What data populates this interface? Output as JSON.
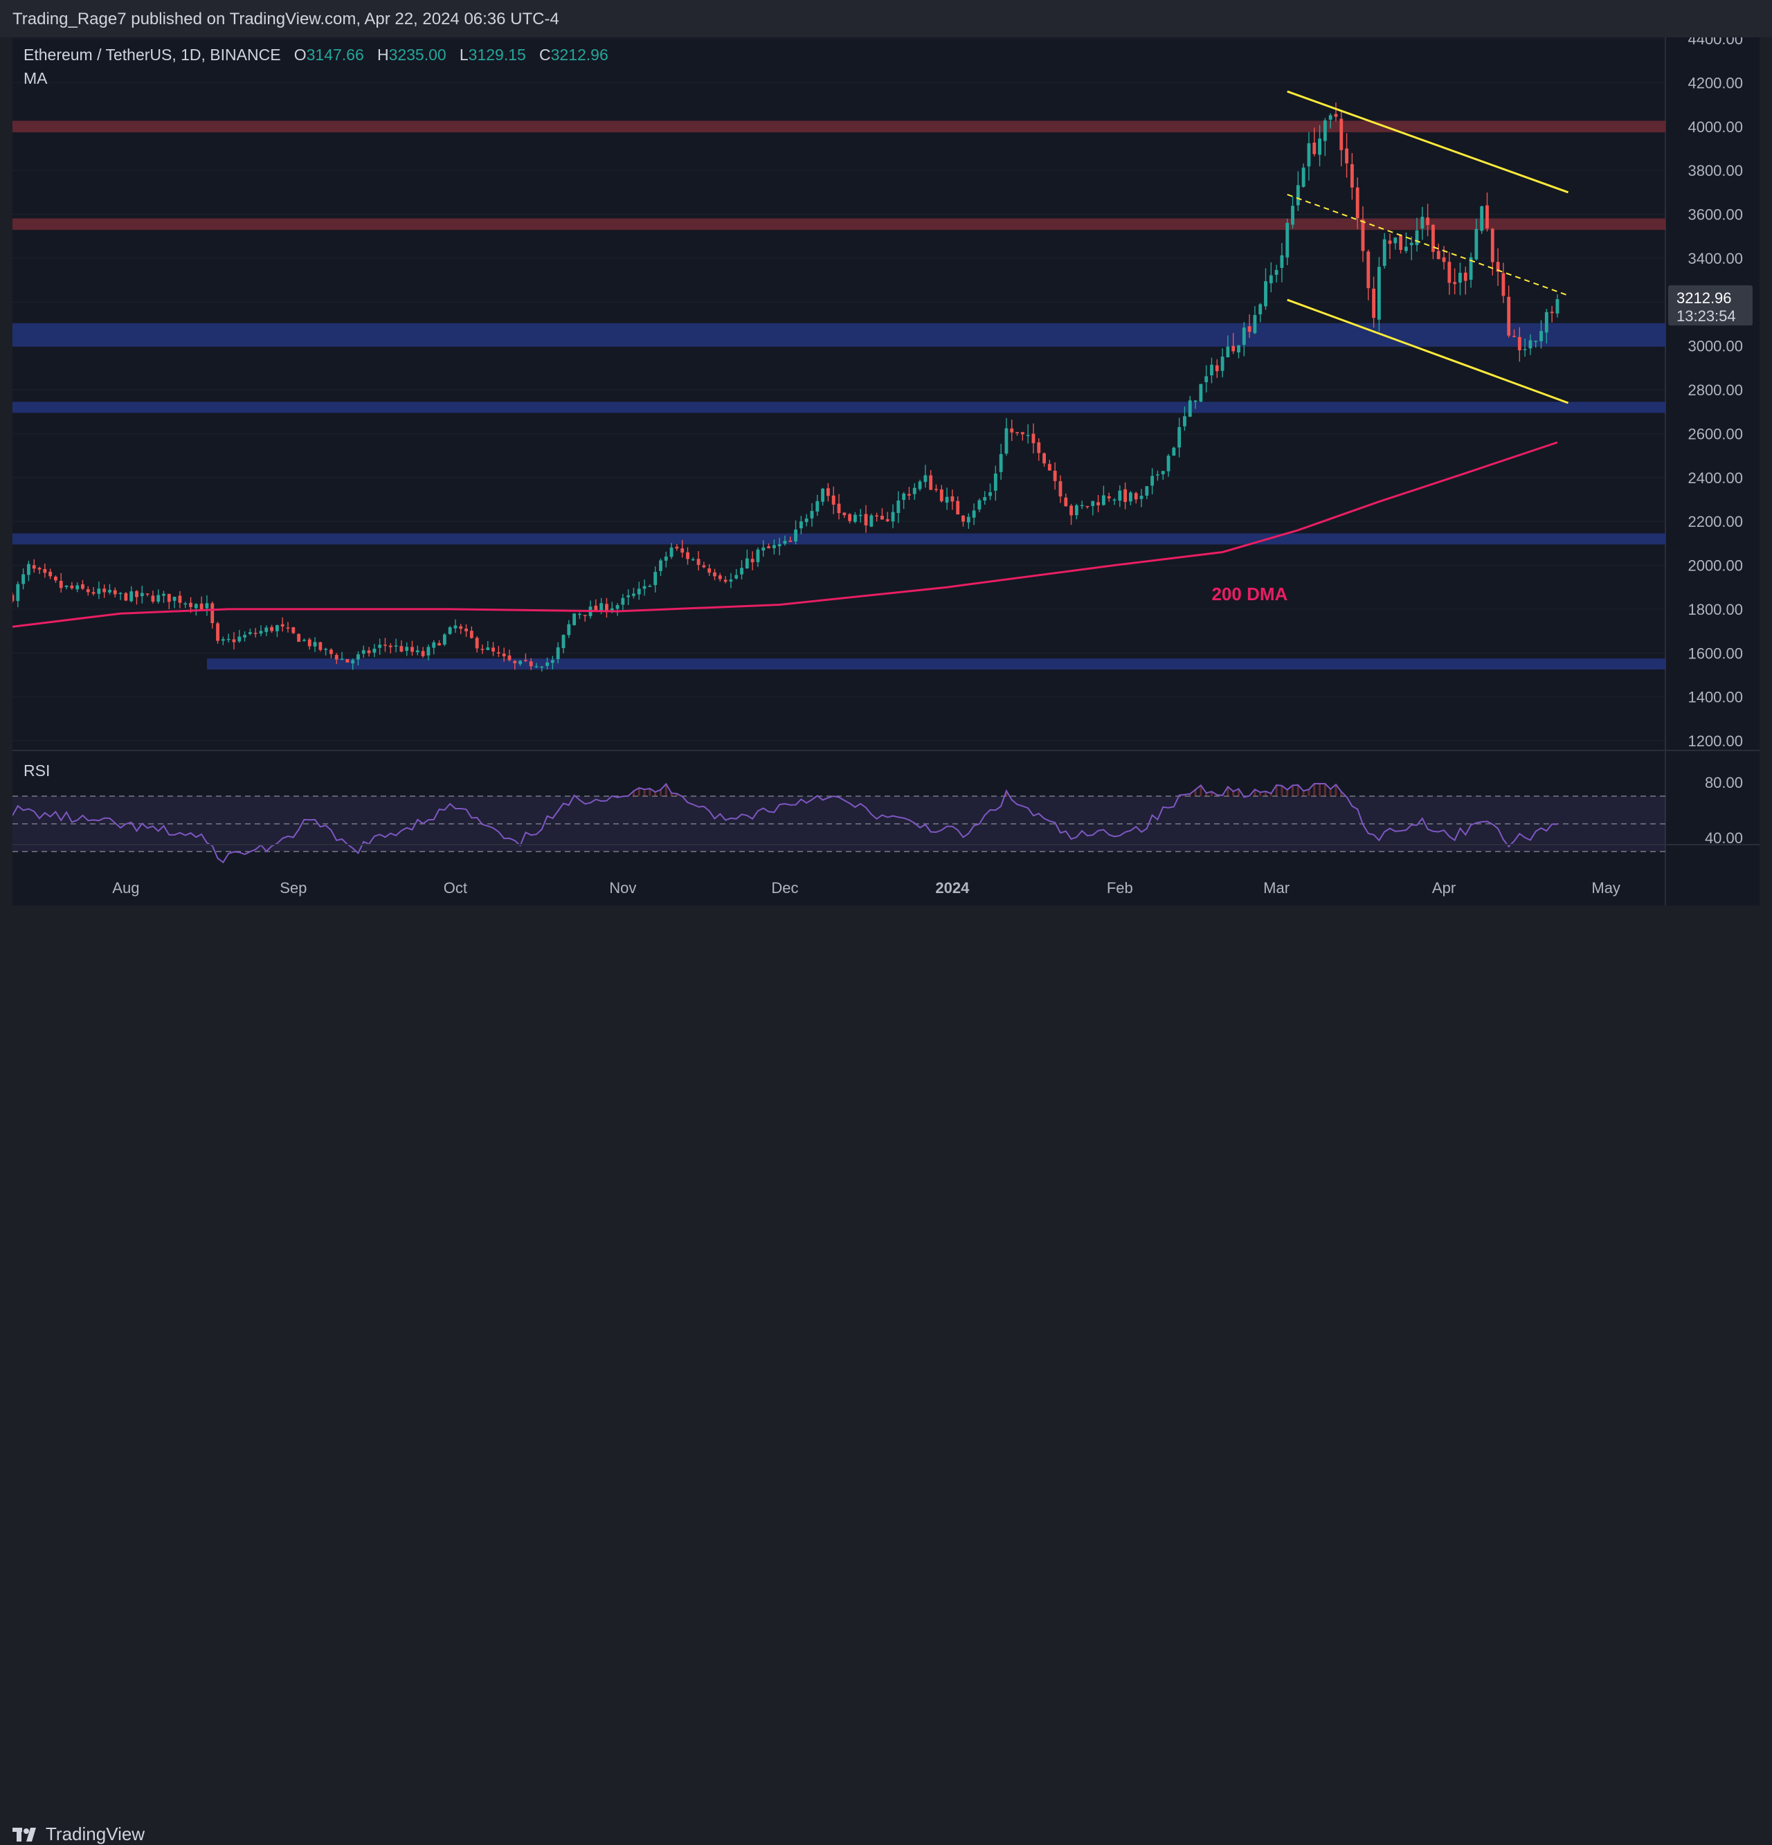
{
  "header": {
    "publisher": "Trading_Rage7 published on TradingView.com, Apr 22, 2024 06:36 UTC-4"
  },
  "legend": {
    "symbol": "Ethereum / TetherUS, 1D, BINANCE",
    "open_label": "O",
    "open": "3147.66",
    "high_label": "H",
    "high": "3235.00",
    "low_label": "L",
    "low": "3129.15",
    "close_label": "C",
    "close": "3212.96",
    "indicator": "MA"
  },
  "price_tag": {
    "price": "3212.96",
    "countdown": "13:23:54"
  },
  "annotations": {
    "ma_label": "200 DMA"
  },
  "rsi": {
    "label": "RSI",
    "ticks": [
      "80.00",
      "40.00"
    ],
    "upper_band": 70,
    "middle": 50,
    "lower_band": 30
  },
  "footer": {
    "brand": "TradingView"
  },
  "colors": {
    "up": "#26a69a",
    "down": "#ef5350",
    "ma": "#e91e63",
    "channel": "#ffeb3b",
    "rsi": "#7e57c2"
  },
  "chart_data": {
    "type": "candlestick",
    "title": "Ethereum / TetherUS, 1D, BINANCE",
    "ylim": [
      1200,
      4400
    ],
    "y_ticks": [
      "4400.00",
      "4200.00",
      "4000.00",
      "3800.00",
      "3600.00",
      "3400.00",
      "3200.00",
      "3000.00",
      "2800.00",
      "2600.00",
      "2400.00",
      "2200.00",
      "2000.00",
      "1800.00",
      "1600.00",
      "1400.00",
      "1200.00"
    ],
    "x_ticks": [
      "Aug",
      "Sep",
      "Oct",
      "Nov",
      "Dec",
      "2024",
      "Feb",
      "Mar",
      "Apr",
      "May"
    ],
    "x_range": [
      "2023-07-11",
      "2024-05-12"
    ],
    "last_bar": {
      "date": "2024-04-22",
      "open": 3147.66,
      "high": 3235.0,
      "low": 3129.15,
      "close": 3212.96
    },
    "price_path": [
      [
        "2023-07-11",
        1860
      ],
      [
        "2023-07-14",
        1990
      ],
      [
        "2023-07-20",
        1900
      ],
      [
        "2023-07-31",
        1860
      ],
      [
        "2023-08-10",
        1850
      ],
      [
        "2023-08-16",
        1810
      ],
      [
        "2023-08-18",
        1640
      ],
      [
        "2023-08-29",
        1720
      ],
      [
        "2023-09-05",
        1630
      ],
      [
        "2023-09-11",
        1560
      ],
      [
        "2023-09-18",
        1640
      ],
      [
        "2023-09-25",
        1590
      ],
      [
        "2023-10-01",
        1720
      ],
      [
        "2023-10-05",
        1640
      ],
      [
        "2023-10-12",
        1545
      ],
      [
        "2023-10-19",
        1560
      ],
      [
        "2023-10-23",
        1780
      ],
      [
        "2023-10-31",
        1820
      ],
      [
        "2023-11-05",
        1890
      ],
      [
        "2023-11-10",
        2080
      ],
      [
        "2023-11-15",
        2010
      ],
      [
        "2023-11-21",
        1930
      ],
      [
        "2023-11-26",
        2060
      ],
      [
        "2023-12-02",
        2100
      ],
      [
        "2023-12-08",
        2360
      ],
      [
        "2023-12-11",
        2240
      ],
      [
        "2023-12-19",
        2190
      ],
      [
        "2023-12-23",
        2320
      ],
      [
        "2023-12-27",
        2390
      ],
      [
        "2024-01-03",
        2220
      ],
      [
        "2024-01-08",
        2330
      ],
      [
        "2024-01-11",
        2620
      ],
      [
        "2024-01-17",
        2540
      ],
      [
        "2024-01-23",
        2240
      ],
      [
        "2024-01-30",
        2320
      ],
      [
        "2024-02-05",
        2300
      ],
      [
        "2024-02-10",
        2500
      ],
      [
        "2024-02-15",
        2780
      ],
      [
        "2024-02-20",
        2950
      ],
      [
        "2024-02-25",
        3100
      ],
      [
        "2024-03-02",
        3420
      ],
      [
        "2024-03-06",
        3850
      ],
      [
        "2024-03-12",
        4050
      ],
      [
        "2024-03-15",
        3700
      ],
      [
        "2024-03-19",
        3150
      ],
      [
        "2024-03-21",
        3530
      ],
      [
        "2024-03-25",
        3440
      ],
      [
        "2024-03-28",
        3600
      ],
      [
        "2024-04-02",
        3280
      ],
      [
        "2024-04-05",
        3330
      ],
      [
        "2024-04-08",
        3640
      ],
      [
        "2024-04-12",
        3200
      ],
      [
        "2024-04-13",
        3010
      ],
      [
        "2024-04-17",
        2990
      ],
      [
        "2024-04-22",
        3213
      ]
    ],
    "ma_200": [
      [
        "2023-07-11",
        1720
      ],
      [
        "2023-07-31",
        1780
      ],
      [
        "2023-08-20",
        1800
      ],
      [
        "2023-09-30",
        1800
      ],
      [
        "2023-10-31",
        1790
      ],
      [
        "2023-11-30",
        1820
      ],
      [
        "2023-12-31",
        1900
      ],
      [
        "2024-01-31",
        2000
      ],
      [
        "2024-02-20",
        2060
      ],
      [
        "2024-03-05",
        2160
      ],
      [
        "2024-03-20",
        2290
      ],
      [
        "2024-04-05",
        2420
      ],
      [
        "2024-04-22",
        2560
      ]
    ],
    "levels": {
      "resistance_zones": [
        4000,
        3555
      ],
      "support_zones": [
        3050,
        2720,
        2120,
        1550
      ]
    },
    "channel": {
      "upper": [
        [
          "2024-03-03",
          4160
        ],
        [
          "2024-04-24",
          3700
        ]
      ],
      "lower": [
        [
          "2024-03-03",
          3210
        ],
        [
          "2024-04-24",
          2740
        ]
      ],
      "mid_dashed": [
        [
          "2024-03-03",
          3690
        ],
        [
          "2024-04-24",
          3230
        ]
      ]
    },
    "rsi_path": [
      [
        "2023-07-11",
        60
      ],
      [
        "2023-07-31",
        49
      ],
      [
        "2023-08-15",
        41
      ],
      [
        "2023-08-18",
        25
      ],
      [
        "2023-09-01",
        38
      ],
      [
        "2023-09-03",
        56
      ],
      [
        "2023-09-12",
        31
      ],
      [
        "2023-10-01",
        63
      ],
      [
        "2023-10-12",
        34
      ],
      [
        "2023-10-23",
        67
      ],
      [
        "2023-11-10",
        76
      ],
      [
        "2023-11-20",
        52
      ],
      [
        "2023-12-08",
        71
      ],
      [
        "2023-12-20",
        54
      ],
      [
        "2024-01-04",
        42
      ],
      [
        "2024-01-11",
        70
      ],
      [
        "2024-01-23",
        40
      ],
      [
        "2024-02-05",
        47
      ],
      [
        "2024-02-15",
        76
      ],
      [
        "2024-02-28",
        72
      ],
      [
        "2024-03-03",
        76
      ],
      [
        "2024-03-13",
        77
      ],
      [
        "2024-03-19",
        40
      ],
      [
        "2024-03-28",
        52
      ],
      [
        "2024-04-03",
        40
      ],
      [
        "2024-04-08",
        55
      ],
      [
        "2024-04-13",
        36
      ],
      [
        "2024-04-22",
        50
      ]
    ]
  }
}
